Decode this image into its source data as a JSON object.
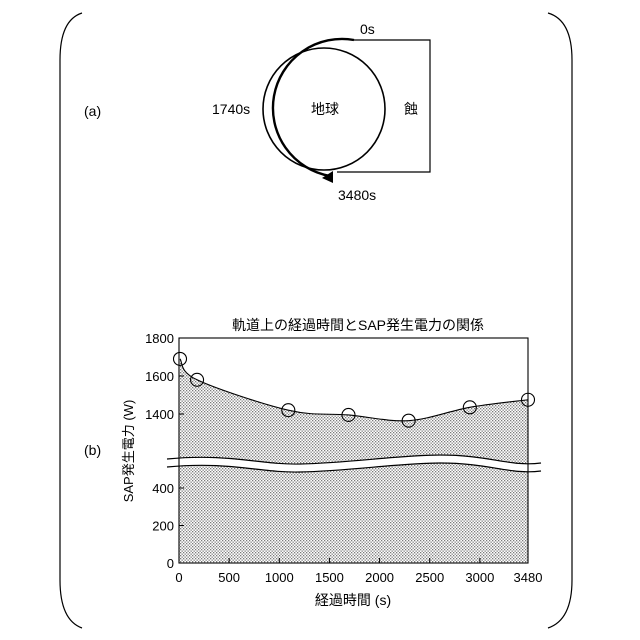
{
  "panel_a": {
    "label": "(a)",
    "center_label": "地球",
    "eclipse_label": "蝕",
    "time_labels": {
      "start": "0s",
      "half": "1740s",
      "end": "3480s"
    }
  },
  "panel_b": {
    "label": "(b)"
  },
  "chart_data": {
    "type": "line",
    "title": "軌道上の経過時間とSAP発生電力の関係",
    "xlabel": "経過時間 (s)",
    "ylabel": "SAP発生電力 (W)",
    "xlim": [
      0,
      3480
    ],
    "x_ticks": [
      "0",
      "500",
      "1000",
      "1500",
      "2000",
      "2500",
      "3000",
      "3480"
    ],
    "x_tick_values": [
      0,
      500,
      1000,
      1500,
      2000,
      2500,
      3000,
      3480
    ],
    "lower_y_ticks": [
      "0",
      "200",
      "400"
    ],
    "lower_y_tick_values": [
      0,
      200,
      400
    ],
    "upper_y_ticks": [
      "1400",
      "1600",
      "1800"
    ],
    "upper_y_tick_values": [
      1400,
      1600,
      1800
    ],
    "axis_break": true,
    "grid": false,
    "area_fill": "dotted gray",
    "series": [
      {
        "x": [
          10,
          180,
          1090,
          1690,
          2290,
          2900,
          3480
        ],
        "y": [
          1690,
          1580,
          1420,
          1395,
          1365,
          1435,
          1475
        ]
      }
    ]
  }
}
